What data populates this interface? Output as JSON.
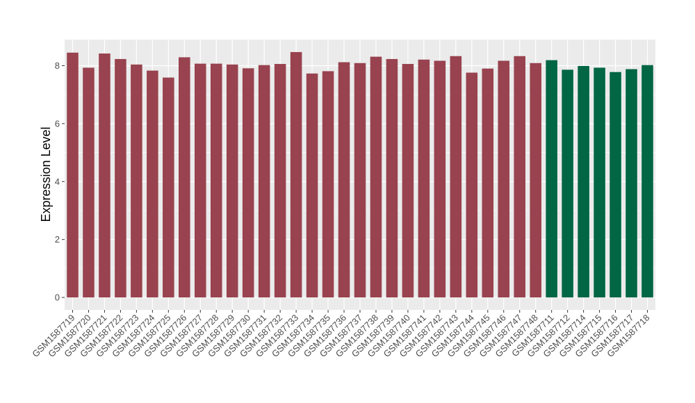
{
  "chart_data": {
    "type": "bar",
    "title": "",
    "xlabel": "",
    "ylabel": "Expression Level",
    "ylim": [
      0,
      8.9
    ],
    "yticks": [
      0,
      2,
      4,
      6,
      8
    ],
    "grid": true,
    "legend": "none",
    "colors": {
      "group_a": "#98434f",
      "group_b": "#006644",
      "panel": "#ebebeb",
      "grid": "#ffffff"
    },
    "categories": [
      "GSM1587719",
      "GSM1587720",
      "GSM1587721",
      "GSM1587722",
      "GSM1587723",
      "GSM1587724",
      "GSM1587725",
      "GSM1587726",
      "GSM1587727",
      "GSM1587728",
      "GSM1587729",
      "GSM1587730",
      "GSM1587731",
      "GSM1587732",
      "GSM1587733",
      "GSM1587734",
      "GSM1587735",
      "GSM1587736",
      "GSM1587737",
      "GSM1587738",
      "GSM1587739",
      "GSM1587740",
      "GSM1587741",
      "GSM1587742",
      "GSM1587743",
      "GSM1587744",
      "GSM1587745",
      "GSM1587746",
      "GSM1587747",
      "GSM1587748",
      "GSM1587711",
      "GSM1587712",
      "GSM1587714",
      "GSM1587715",
      "GSM1587716",
      "GSM1587717",
      "GSM1587718"
    ],
    "values": [
      8.45,
      7.93,
      8.42,
      8.23,
      8.04,
      7.83,
      7.59,
      8.29,
      8.07,
      8.07,
      8.04,
      7.91,
      8.02,
      8.06,
      8.47,
      7.73,
      7.81,
      8.12,
      8.09,
      8.31,
      8.23,
      8.06,
      8.21,
      8.17,
      8.33,
      7.76,
      7.9,
      8.17,
      8.33,
      8.09,
      8.19,
      7.86,
      7.99,
      7.93,
      7.78,
      7.88,
      8.02
    ],
    "groups": [
      "a",
      "a",
      "a",
      "a",
      "a",
      "a",
      "a",
      "a",
      "a",
      "a",
      "a",
      "a",
      "a",
      "a",
      "a",
      "a",
      "a",
      "a",
      "a",
      "a",
      "a",
      "a",
      "a",
      "a",
      "a",
      "a",
      "a",
      "a",
      "a",
      "a",
      "b",
      "b",
      "b",
      "b",
      "b",
      "b",
      "b"
    ]
  }
}
